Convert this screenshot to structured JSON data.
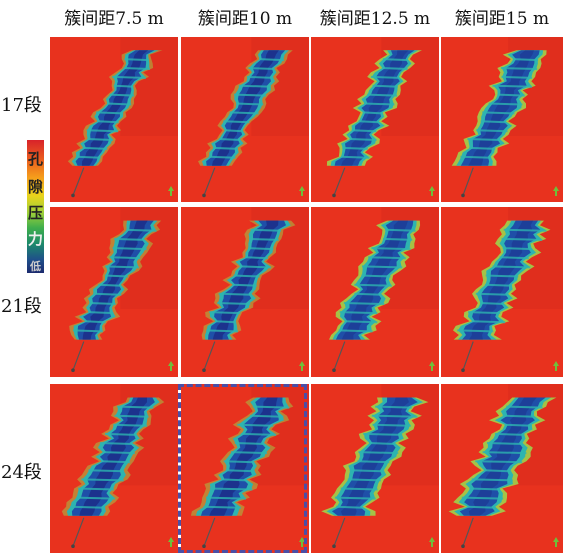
{
  "column_headers": [
    "簇间距7.5 m",
    "簇间距10 m",
    "簇间距12.5 m",
    "簇间距15 m"
  ],
  "row_labels": [
    "17段",
    "21段",
    "24段"
  ],
  "colorbar": {
    "label_chars": [
      "孔",
      "隙",
      "压",
      "力"
    ],
    "low_label": "低",
    "colors": [
      "#d8232a",
      "#f59d1b",
      "#e8d31c",
      "#3fae4c",
      "#1c2a6e"
    ]
  },
  "panel_colors": {
    "background": "#e8321e",
    "band_outer": "#2db4b0",
    "band_inner": "#1f4fa8",
    "band_core": "#1c2f8a",
    "fringe": "#9ed24a",
    "arrow": "#6fbf3a"
  },
  "highlighted_panel": "24段-簇间距10 m"
}
